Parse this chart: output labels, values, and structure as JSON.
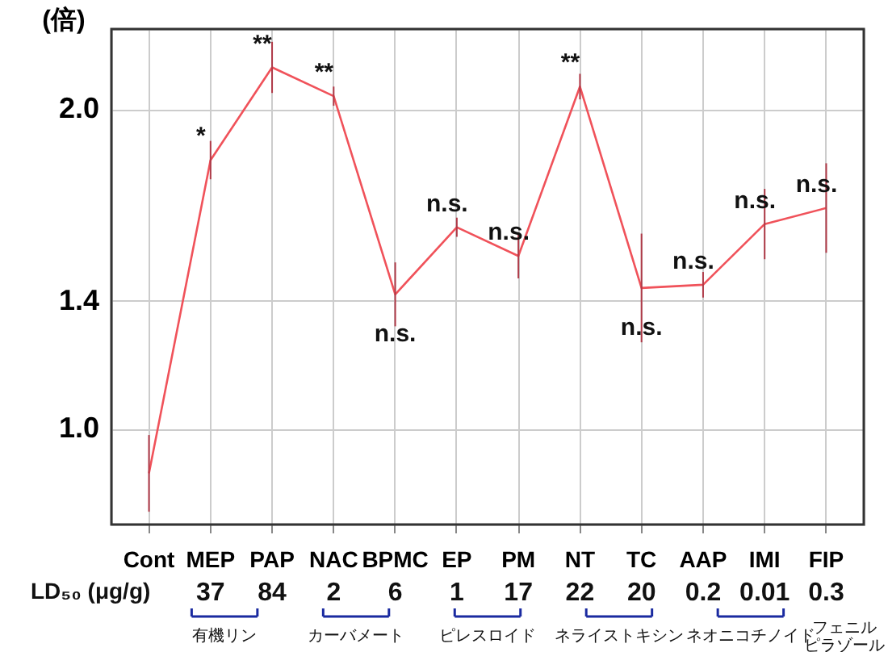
{
  "chart_data": {
    "type": "line",
    "ylabel": "(倍)",
    "categories": [
      "Cont",
      "MEP",
      "PAP",
      "NAC",
      "BPMC",
      "EP",
      "PM",
      "NT",
      "TC",
      "AAP",
      "IMI",
      "FIP"
    ],
    "series": [
      {
        "color": "#f0525a",
        "values": [
          0.86,
          1.84,
          2.13,
          2.04,
          1.42,
          1.63,
          1.54,
          2.07,
          1.44,
          1.45,
          1.64,
          1.69
        ],
        "errors": [
          0.12,
          0.06,
          0.08,
          0.03,
          0.1,
          0.03,
          0.07,
          0.04,
          0.17,
          0.04,
          0.11,
          0.14
        ]
      }
    ],
    "ylim": [
      0.7,
      2.25
    ],
    "yticks": [
      {
        "value": 1.0,
        "label": "1.0"
      },
      1.4,
      {
        "value": 2.0,
        "label": "2.0"
      }
    ],
    "grid": true,
    "marker": "none",
    "line_style": "solid",
    "annotations": [
      {
        "text": "*",
        "x": "MEP",
        "y": 1.84
      },
      {
        "text": "**",
        "x": "PAP",
        "y": 2.13
      },
      {
        "text": "**",
        "x": "NAC",
        "y": 2.04
      },
      {
        "text": "n.s.",
        "x": "BPMC",
        "y": 1.42
      },
      {
        "text": "n.s.",
        "x": "EP",
        "y": 1.63
      },
      {
        "text": "n.s.",
        "x": "PM",
        "y": 1.54
      },
      {
        "text": "**",
        "x": "NT",
        "y": 2.07
      },
      {
        "text": "n.s.",
        "x": "TC",
        "y": 1.44
      },
      {
        "text": "n.s.",
        "x": "AAP",
        "y": 1.45
      },
      {
        "text": "n.s.",
        "x": "IMI",
        "y": 1.64
      },
      {
        "text": "n.s.",
        "x": "FIP",
        "y": 1.69
      },
      "LD₅₀ (μg/g)",
      "37",
      "84",
      "2",
      "6",
      "1",
      "17",
      "22",
      "20",
      "0.2",
      "0.01",
      "0.3",
      "有機リン",
      "カーバメート",
      "ピレスロイド",
      "ネライストキシン",
      "ネオニコチノイド",
      "フェニルピラゾール"
    ]
  }
}
